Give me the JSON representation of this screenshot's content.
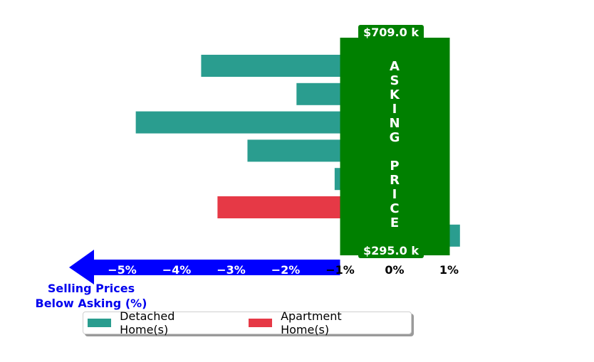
{
  "chart_data": {
    "type": "bar",
    "orientation": "horizontal",
    "series": [
      {
        "name": "Detached Home(s)",
        "color": "#2a9d8f"
      },
      {
        "name": "Apartment Home(s)",
        "color": "#e63946"
      }
    ],
    "bars": [
      {
        "series": "Detached Home(s)",
        "value": -3.55
      },
      {
        "series": "Detached Home(s)",
        "value": -1.8
      },
      {
        "series": "Detached Home(s)",
        "value": -4.75
      },
      {
        "series": "Detached Home(s)",
        "value": -2.7
      },
      {
        "series": "Detached Home(s)",
        "value": -1.1
      },
      {
        "series": "Apartment Home(s)",
        "value": -3.25
      },
      {
        "series": "Detached Home(s)",
        "value": 1.2
      }
    ],
    "xlim": [
      -6,
      1.2
    ],
    "x_ticks": [
      "−5%",
      "−4%",
      "−3%",
      "−2%",
      "−1%",
      "0%",
      "1%"
    ],
    "asking_price_band": {
      "from": -1,
      "to": 1,
      "color": "#008000",
      "label": "ASKING PRICE"
    },
    "top_badge": "$709.0 k",
    "bottom_badge": "$295.0 k",
    "arrow_label": [
      "Selling Prices",
      "Below Asking (%)"
    ],
    "arrow_color": "#0000ff",
    "legend": {
      "placement": "bottom-center",
      "entries": [
        "Detached Home(s)",
        "Apartment Home(s)"
      ]
    }
  }
}
